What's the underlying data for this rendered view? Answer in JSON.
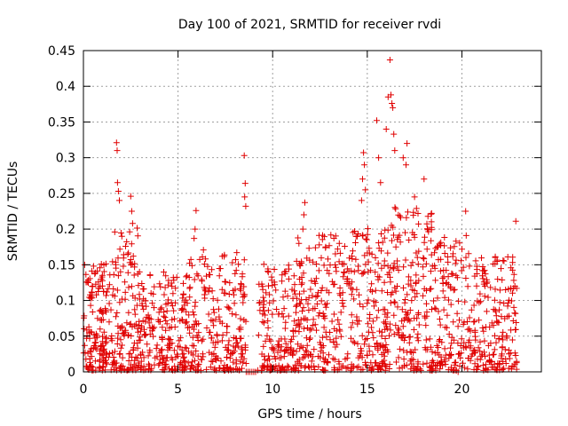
{
  "chart_data": {
    "type": "scatter",
    "title": "Day 100 of 2021, SRMTID for receiver rvdi",
    "xlabel": "GPS time / hours",
    "ylabel": "SRMTID / TECUs",
    "xlim": [
      0,
      24.2
    ],
    "ylim": [
      0,
      0.45
    ],
    "xticks": [
      0,
      5,
      10,
      15,
      20
    ],
    "xtick_labels": [
      "0",
      "5",
      "10",
      "15",
      "20"
    ],
    "yticks": [
      0,
      0.05,
      0.1,
      0.15,
      0.2,
      0.25,
      0.3,
      0.35,
      0.4,
      0.45
    ],
    "ytick_labels": [
      "0",
      "0.05",
      "0.1",
      "0.15",
      "0.2",
      "0.25",
      "0.3",
      "0.35",
      "0.4",
      "0.45"
    ],
    "grid": true,
    "legend": "none",
    "marker": "plus",
    "color": "#e00000",
    "seed": 12345,
    "peaks": [
      {
        "x": 1.75,
        "y": 0.321
      },
      {
        "x": 1.78,
        "y": 0.31
      },
      {
        "x": 1.8,
        "y": 0.265
      },
      {
        "x": 1.85,
        "y": 0.253
      },
      {
        "x": 1.9,
        "y": 0.24
      },
      {
        "x": 2.5,
        "y": 0.246
      },
      {
        "x": 2.55,
        "y": 0.225
      },
      {
        "x": 2.6,
        "y": 0.208
      },
      {
        "x": 5.95,
        "y": 0.226
      },
      {
        "x": 5.9,
        "y": 0.2
      },
      {
        "x": 5.85,
        "y": 0.187
      },
      {
        "x": 8.5,
        "y": 0.303
      },
      {
        "x": 8.55,
        "y": 0.264
      },
      {
        "x": 8.52,
        "y": 0.245
      },
      {
        "x": 8.58,
        "y": 0.232
      },
      {
        "x": 11.7,
        "y": 0.237
      },
      {
        "x": 11.65,
        "y": 0.22
      },
      {
        "x": 11.6,
        "y": 0.2
      },
      {
        "x": 14.8,
        "y": 0.307
      },
      {
        "x": 14.85,
        "y": 0.29
      },
      {
        "x": 14.75,
        "y": 0.27
      },
      {
        "x": 14.9,
        "y": 0.255
      },
      {
        "x": 14.7,
        "y": 0.24
      },
      {
        "x": 15.5,
        "y": 0.352
      },
      {
        "x": 15.6,
        "y": 0.3
      },
      {
        "x": 15.7,
        "y": 0.265
      },
      {
        "x": 16.1,
        "y": 0.385
      },
      {
        "x": 16.0,
        "y": 0.34
      },
      {
        "x": 16.2,
        "y": 0.437
      },
      {
        "x": 16.25,
        "y": 0.388
      },
      {
        "x": 16.3,
        "y": 0.376
      },
      {
        "x": 16.35,
        "y": 0.37
      },
      {
        "x": 16.4,
        "y": 0.333
      },
      {
        "x": 16.45,
        "y": 0.31
      },
      {
        "x": 16.9,
        "y": 0.3
      },
      {
        "x": 17.1,
        "y": 0.32
      },
      {
        "x": 17.05,
        "y": 0.29
      },
      {
        "x": 17.5,
        "y": 0.245
      },
      {
        "x": 18.0,
        "y": 0.27
      },
      {
        "x": 18.4,
        "y": 0.222
      },
      {
        "x": 20.2,
        "y": 0.225
      },
      {
        "x": 22.85,
        "y": 0.211
      }
    ],
    "zero_points": [
      {
        "x": 8.6,
        "y": 0
      },
      {
        "x": 8.7,
        "y": 0
      },
      {
        "x": 8.8,
        "y": 0
      },
      {
        "x": 8.9,
        "y": 0
      },
      {
        "x": 9.0,
        "y": 0
      },
      {
        "x": 9.1,
        "y": 0
      },
      {
        "x": 19.8,
        "y": 0
      }
    ],
    "bulk_segments": [
      {
        "x0": 0.0,
        "x1": 1.5,
        "n": 150,
        "ymax": 0.15
      },
      {
        "x0": 1.5,
        "x1": 3.0,
        "n": 140,
        "ymax": 0.2
      },
      {
        "x0": 3.0,
        "x1": 5.5,
        "n": 200,
        "ymax": 0.14
      },
      {
        "x0": 5.5,
        "x1": 8.6,
        "n": 230,
        "ymax": 0.17
      },
      {
        "x0": 9.2,
        "x1": 11.2,
        "n": 150,
        "ymax": 0.15
      },
      {
        "x0": 11.2,
        "x1": 14.0,
        "n": 220,
        "ymax": 0.19
      },
      {
        "x0": 14.0,
        "x1": 16.0,
        "n": 170,
        "ymax": 0.2
      },
      {
        "x0": 16.0,
        "x1": 18.5,
        "n": 210,
        "ymax": 0.23
      },
      {
        "x0": 18.5,
        "x1": 20.5,
        "n": 150,
        "ymax": 0.19
      },
      {
        "x0": 20.5,
        "x1": 22.9,
        "n": 190,
        "ymax": 0.16
      }
    ]
  }
}
